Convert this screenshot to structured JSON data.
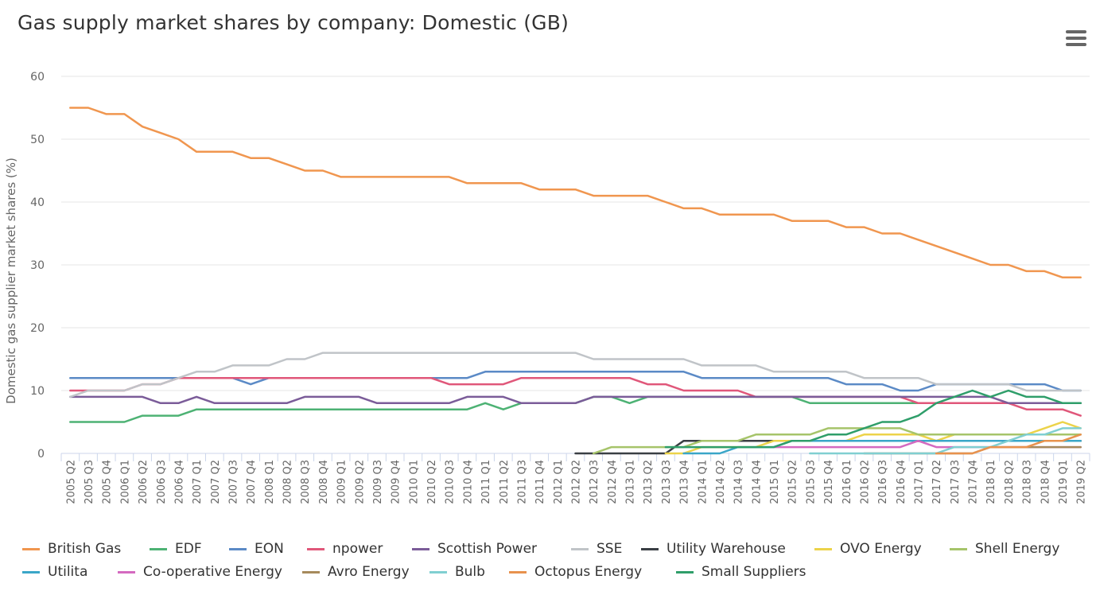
{
  "chart_data": {
    "type": "line",
    "title": "Gas supply market shares by company: Domestic (GB)",
    "ylabel": "Domestic gas supplier market shares (%)",
    "xlabel": "",
    "ylim": [
      0,
      60
    ],
    "yticks": [
      "0",
      "10",
      "20",
      "30",
      "40",
      "50",
      "60"
    ],
    "grid": true,
    "legend_placement": "bottom",
    "categories": [
      "2005 Q2",
      "2005 Q3",
      "2005 Q4",
      "2006 Q1",
      "2006 Q2",
      "2006 Q3",
      "2006 Q4",
      "2007 Q1",
      "2007 Q2",
      "2007 Q3",
      "2007 Q4",
      "2008 Q1",
      "2008 Q2",
      "2008 Q3",
      "2008 Q4",
      "2009 Q1",
      "2009 Q2",
      "2009 Q3",
      "2009 Q4",
      "2010 Q1",
      "2010 Q2",
      "2010 Q3",
      "2010 Q4",
      "2011 Q1",
      "2011 Q2",
      "2011 Q3",
      "2011 Q4",
      "2012 Q1",
      "2012 Q2",
      "2012 Q3",
      "2012 Q4",
      "2013 Q1",
      "2013 Q2",
      "2013 Q3",
      "2013 Q4",
      "2014 Q1",
      "2014 Q2",
      "2014 Q3",
      "2014 Q4",
      "2015 Q1",
      "2015 Q2",
      "2015 Q3",
      "2015 Q4",
      "2016 Q1",
      "2016 Q2",
      "2016 Q3",
      "2016 Q4",
      "2017 Q1",
      "2017 Q2",
      "2017 Q3",
      "2017 Q4",
      "2018 Q1",
      "2018 Q2",
      "2018 Q3",
      "2018 Q4",
      "2019 Q1",
      "2019 Q2"
    ],
    "series": [
      {
        "name": "British Gas",
        "color": "#f0964f",
        "values": [
          55,
          55,
          54,
          54,
          52,
          51,
          50,
          48,
          48,
          48,
          47,
          47,
          46,
          45,
          45,
          44,
          44,
          44,
          44,
          44,
          44,
          44,
          43,
          43,
          43,
          43,
          42,
          42,
          42,
          41,
          41,
          41,
          41,
          40,
          39,
          39,
          38,
          38,
          38,
          38,
          37,
          37,
          37,
          36,
          36,
          35,
          35,
          34,
          33,
          32,
          31,
          30,
          30,
          29,
          29,
          28,
          28
        ]
      },
      {
        "name": "EDF",
        "color": "#4db274",
        "values": [
          5,
          5,
          5,
          5,
          6,
          6,
          6,
          7,
          7,
          7,
          7,
          7,
          7,
          7,
          7,
          7,
          7,
          7,
          7,
          7,
          7,
          7,
          7,
          8,
          7,
          8,
          8,
          8,
          8,
          9,
          9,
          8,
          9,
          9,
          9,
          9,
          9,
          9,
          9,
          9,
          9,
          8,
          8,
          8,
          8,
          8,
          8,
          8,
          8,
          8,
          8,
          8,
          8,
          8,
          8,
          8,
          8
        ]
      },
      {
        "name": "EON",
        "color": "#5b8ac6",
        "values": [
          12,
          12,
          12,
          12,
          12,
          12,
          12,
          12,
          12,
          12,
          11,
          12,
          12,
          12,
          12,
          12,
          12,
          12,
          12,
          12,
          12,
          12,
          12,
          13,
          13,
          13,
          13,
          13,
          13,
          13,
          13,
          13,
          13,
          13,
          13,
          12,
          12,
          12,
          12,
          12,
          12,
          12,
          12,
          11,
          11,
          11,
          10,
          10,
          11,
          11,
          11,
          11,
          11,
          11,
          11,
          10,
          10
        ]
      },
      {
        "name": "npower",
        "color": "#e0577a",
        "values": [
          10,
          10,
          10,
          10,
          11,
          11,
          12,
          12,
          12,
          12,
          12,
          12,
          12,
          12,
          12,
          12,
          12,
          12,
          12,
          12,
          12,
          11,
          11,
          11,
          11,
          12,
          12,
          12,
          12,
          12,
          12,
          12,
          11,
          11,
          10,
          10,
          10,
          10,
          9,
          9,
          9,
          9,
          9,
          9,
          9,
          9,
          9,
          8,
          8,
          8,
          8,
          8,
          8,
          7,
          7,
          7,
          6
        ]
      },
      {
        "name": "Scottish Power",
        "color": "#7b5c99",
        "values": [
          9,
          9,
          9,
          9,
          9,
          8,
          8,
          9,
          8,
          8,
          8,
          8,
          8,
          9,
          9,
          9,
          9,
          8,
          8,
          8,
          8,
          8,
          9,
          9,
          9,
          8,
          8,
          8,
          8,
          9,
          9,
          9,
          9,
          9,
          9,
          9,
          9,
          9,
          9,
          9,
          9,
          9,
          9,
          9,
          9,
          9,
          9,
          9,
          9,
          9,
          9,
          9,
          8,
          8,
          8,
          8,
          8
        ]
      },
      {
        "name": "SSE",
        "color": "#c0c4c8",
        "values": [
          9,
          10,
          10,
          10,
          11,
          11,
          12,
          13,
          13,
          14,
          14,
          14,
          15,
          15,
          16,
          16,
          16,
          16,
          16,
          16,
          16,
          16,
          16,
          16,
          16,
          16,
          16,
          16,
          16,
          15,
          15,
          15,
          15,
          15,
          15,
          14,
          14,
          14,
          14,
          13,
          13,
          13,
          13,
          13,
          12,
          12,
          12,
          12,
          11,
          11,
          11,
          11,
          11,
          10,
          10,
          10,
          10
        ]
      },
      {
        "name": "Utility Warehouse",
        "color": "#3a3f44",
        "values": [
          null,
          null,
          null,
          null,
          null,
          null,
          null,
          null,
          null,
          null,
          null,
          null,
          null,
          null,
          null,
          null,
          null,
          null,
          null,
          null,
          null,
          null,
          null,
          null,
          null,
          null,
          null,
          null,
          0,
          0,
          0,
          0,
          0,
          0,
          2,
          2,
          2,
          2,
          2,
          2,
          2,
          2,
          2,
          2,
          2,
          2,
          2,
          2,
          2,
          2,
          2,
          2,
          2,
          2,
          2,
          2,
          2
        ]
      },
      {
        "name": "OVO Energy",
        "color": "#ecd34a",
        "values": [
          null,
          null,
          null,
          null,
          null,
          null,
          null,
          null,
          null,
          null,
          null,
          null,
          null,
          null,
          null,
          null,
          null,
          null,
          null,
          null,
          null,
          null,
          null,
          null,
          null,
          null,
          null,
          null,
          null,
          null,
          null,
          null,
          null,
          0,
          0,
          1,
          1,
          1,
          1,
          2,
          2,
          2,
          2,
          2,
          3,
          3,
          3,
          3,
          2,
          3,
          3,
          3,
          3,
          3,
          4,
          5,
          4
        ]
      },
      {
        "name": "Shell Energy",
        "color": "#a6c46a",
        "values": [
          null,
          null,
          null,
          null,
          null,
          null,
          null,
          null,
          null,
          null,
          null,
          null,
          null,
          null,
          null,
          null,
          null,
          null,
          null,
          null,
          null,
          null,
          null,
          null,
          null,
          null,
          null,
          null,
          null,
          0,
          1,
          1,
          1,
          1,
          1,
          2,
          2,
          2,
          3,
          3,
          3,
          3,
          4,
          4,
          4,
          4,
          4,
          3,
          3,
          3,
          3,
          3,
          3,
          3,
          3,
          3,
          3
        ]
      },
      {
        "name": "Utilita",
        "color": "#3aa6c8",
        "values": [
          null,
          null,
          null,
          null,
          null,
          null,
          null,
          null,
          null,
          null,
          null,
          null,
          null,
          null,
          null,
          null,
          null,
          null,
          null,
          null,
          null,
          null,
          null,
          null,
          null,
          null,
          null,
          null,
          null,
          null,
          null,
          null,
          null,
          null,
          0,
          0,
          0,
          1,
          1,
          1,
          2,
          2,
          2,
          2,
          2,
          2,
          2,
          2,
          2,
          2,
          2,
          2,
          2,
          2,
          2,
          2,
          2
        ]
      },
      {
        "name": "Co-operative Energy",
        "color": "#d46ac0",
        "values": [
          null,
          null,
          null,
          null,
          null,
          null,
          null,
          null,
          null,
          null,
          null,
          null,
          null,
          null,
          null,
          null,
          null,
          null,
          null,
          null,
          null,
          null,
          null,
          null,
          null,
          null,
          null,
          null,
          null,
          null,
          null,
          null,
          null,
          null,
          null,
          null,
          null,
          null,
          null,
          1,
          1,
          1,
          1,
          1,
          1,
          1,
          1,
          2,
          1,
          1,
          1,
          1,
          1,
          1,
          1,
          1,
          1
        ]
      },
      {
        "name": "Avro Energy",
        "color": "#a68a5c",
        "values": [
          null,
          null,
          null,
          null,
          null,
          null,
          null,
          null,
          null,
          null,
          null,
          null,
          null,
          null,
          null,
          null,
          null,
          null,
          null,
          null,
          null,
          null,
          null,
          null,
          null,
          null,
          null,
          null,
          null,
          null,
          null,
          null,
          null,
          null,
          null,
          null,
          null,
          null,
          null,
          null,
          null,
          null,
          null,
          null,
          0,
          0,
          0,
          0,
          0,
          0,
          0,
          1,
          1,
          1,
          1,
          1,
          1
        ]
      },
      {
        "name": "Bulb",
        "color": "#80cfd1",
        "values": [
          null,
          null,
          null,
          null,
          null,
          null,
          null,
          null,
          null,
          null,
          null,
          null,
          null,
          null,
          null,
          null,
          null,
          null,
          null,
          null,
          null,
          null,
          null,
          null,
          null,
          null,
          null,
          null,
          null,
          null,
          null,
          null,
          null,
          null,
          null,
          null,
          null,
          null,
          null,
          null,
          null,
          0,
          0,
          0,
          0,
          0,
          0,
          0,
          0,
          1,
          1,
          1,
          2,
          3,
          3,
          4,
          4
        ]
      },
      {
        "name": "Octopus Energy",
        "color": "#e8924e",
        "values": [
          null,
          null,
          null,
          null,
          null,
          null,
          null,
          null,
          null,
          null,
          null,
          null,
          null,
          null,
          null,
          null,
          null,
          null,
          null,
          null,
          null,
          null,
          null,
          null,
          null,
          null,
          null,
          null,
          null,
          null,
          null,
          null,
          null,
          null,
          null,
          null,
          null,
          null,
          null,
          null,
          null,
          null,
          null,
          null,
          null,
          null,
          null,
          null,
          0,
          0,
          0,
          1,
          1,
          1,
          2,
          2,
          3
        ]
      },
      {
        "name": "Small Suppliers",
        "color": "#2f9e6a",
        "values": [
          null,
          null,
          null,
          null,
          null,
          null,
          null,
          null,
          null,
          null,
          null,
          null,
          null,
          null,
          null,
          null,
          null,
          null,
          null,
          null,
          null,
          null,
          null,
          null,
          null,
          null,
          null,
          null,
          null,
          null,
          null,
          null,
          null,
          1,
          1,
          1,
          1,
          1,
          1,
          1,
          2,
          2,
          3,
          3,
          4,
          5,
          5,
          6,
          8,
          9,
          10,
          9,
          10,
          9,
          9,
          8,
          8
        ]
      }
    ]
  }
}
